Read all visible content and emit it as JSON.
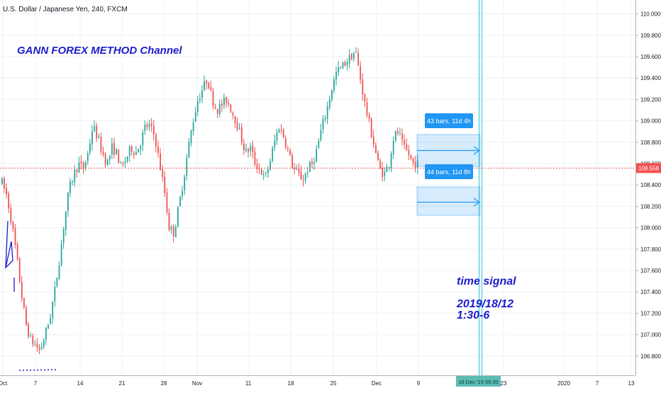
{
  "header": {
    "symbol_title": "U.S. Dollar / Japanese Yen, 240, FXCM"
  },
  "chart_data": {
    "type": "candlestick",
    "title": "U.S. Dollar / Japanese Yen, 240, FXCM",
    "ylim": [
      106.62,
      110.13
    ],
    "y_ticks": [
      "110.000",
      "109.800",
      "109.600",
      "109.400",
      "109.200",
      "109.000",
      "108.800",
      "108.600",
      "108.400",
      "108.200",
      "108.000",
      "107.800",
      "107.600",
      "107.400",
      "107.200",
      "107.000",
      "106.800"
    ],
    "x_ticks": [
      "Oct",
      "7",
      "14",
      "21",
      "28",
      "Nov",
      "11",
      "18",
      "25",
      "Dec",
      "9",
      "23",
      "2020",
      "7",
      "13"
    ],
    "last_price": "108.558",
    "grid": true,
    "colors": {
      "up": "#26a69a",
      "down": "#ef5350",
      "text": "#1c1ccc",
      "box": "#2196f3",
      "price_line": "#ef5350",
      "time_line": "#26c6da"
    },
    "path_points": [
      [
        106.7,
        108.42
      ],
      [
        106.74,
        108.3
      ],
      [
        106.78,
        108.05
      ],
      [
        106.82,
        107.75
      ],
      [
        106.86,
        107.4
      ],
      [
        106.9,
        107.1
      ],
      [
        106.94,
        106.95
      ],
      [
        106.98,
        106.9
      ],
      [
        107.02,
        106.85
      ],
      [
        107.06,
        107.0
      ],
      [
        107.1,
        107.15
      ],
      [
        107.14,
        107.4
      ],
      [
        107.18,
        107.7
      ],
      [
        107.22,
        108.05
      ],
      [
        107.26,
        108.35
      ],
      [
        107.3,
        108.5
      ],
      [
        107.34,
        108.6
      ],
      [
        107.38,
        108.55
      ],
      [
        107.42,
        108.7
      ],
      [
        107.46,
        108.95
      ],
      [
        107.5,
        108.85
      ],
      [
        107.54,
        108.7
      ],
      [
        107.58,
        108.6
      ],
      [
        107.62,
        108.75
      ],
      [
        107.66,
        108.7
      ],
      [
        107.7,
        108.55
      ],
      [
        107.74,
        108.65
      ],
      [
        107.78,
        108.75
      ],
      [
        107.82,
        108.7
      ],
      [
        107.86,
        108.8
      ],
      [
        107.9,
        108.95
      ],
      [
        107.94,
        108.95
      ],
      [
        107.98,
        108.85
      ],
      [
        108.02,
        108.6
      ],
      [
        108.06,
        108.35
      ],
      [
        108.1,
        108.0
      ],
      [
        108.14,
        107.95
      ],
      [
        108.18,
        108.2
      ],
      [
        108.22,
        108.45
      ],
      [
        108.26,
        108.75
      ],
      [
        108.3,
        109.0
      ],
      [
        108.34,
        109.2
      ],
      [
        108.38,
        109.3
      ],
      [
        108.42,
        109.4
      ],
      [
        108.46,
        109.2
      ],
      [
        108.5,
        109.1
      ],
      [
        108.54,
        109.15
      ],
      [
        108.58,
        109.2
      ],
      [
        108.62,
        109.1
      ],
      [
        108.66,
        109.0
      ],
      [
        108.7,
        108.85
      ],
      [
        108.74,
        108.7
      ],
      [
        108.78,
        108.75
      ],
      [
        108.82,
        108.6
      ],
      [
        108.86,
        108.55
      ],
      [
        108.9,
        108.45
      ],
      [
        108.94,
        108.6
      ],
      [
        108.98,
        108.8
      ],
      [
        109.02,
        108.95
      ],
      [
        109.06,
        108.85
      ],
      [
        109.1,
        108.7
      ],
      [
        109.14,
        108.55
      ],
      [
        109.18,
        108.5
      ],
      [
        109.22,
        108.45
      ],
      [
        109.26,
        108.55
      ],
      [
        109.3,
        108.6
      ],
      [
        109.34,
        108.75
      ],
      [
        109.38,
        108.95
      ],
      [
        109.42,
        109.1
      ],
      [
        109.46,
        109.3
      ],
      [
        109.5,
        109.45
      ],
      [
        109.54,
        109.5
      ],
      [
        109.58,
        109.55
      ],
      [
        109.62,
        109.6
      ],
      [
        109.66,
        109.65
      ],
      [
        109.7,
        109.4
      ],
      [
        109.74,
        109.15
      ],
      [
        109.78,
        108.95
      ],
      [
        109.82,
        108.75
      ],
      [
        109.86,
        108.55
      ],
      [
        109.9,
        108.5
      ],
      [
        109.94,
        108.6
      ],
      [
        109.98,
        108.85
      ],
      [
        110.02,
        108.9
      ],
      [
        110.06,
        108.75
      ],
      [
        110.1,
        108.7
      ],
      [
        110.14,
        108.6
      ],
      [
        110.18,
        108.6
      ]
    ],
    "annotations": {
      "channel_title": "GANN FOREX METHOD Channel",
      "time_signal_label": "time signal",
      "time_signal_date": "2019/18/12",
      "time_signal_time": "1:30-6",
      "range_upper_label": "43 bars, 11d 4h",
      "range_lower_label": "44 bars, 11d 8h",
      "time_axis_marker": "18 Dec '19   05:30"
    }
  }
}
